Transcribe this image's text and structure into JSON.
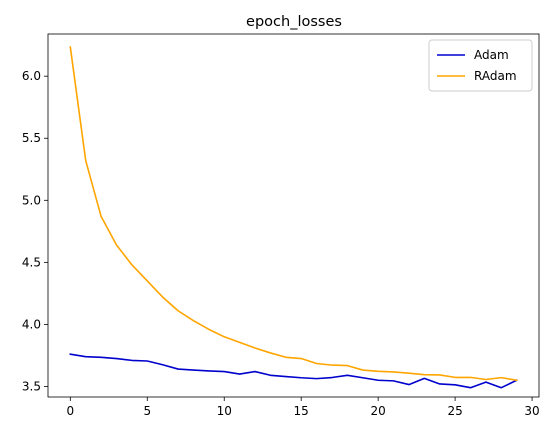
{
  "chart_data": {
    "type": "line",
    "title": "epoch_losses",
    "xlabel": "",
    "ylabel": "",
    "xlim": [
      -1.45,
      30.45
    ],
    "ylim": [
      3.415,
      6.34
    ],
    "xticks": [
      0,
      5,
      10,
      15,
      20,
      25,
      30
    ],
    "xtick_labels": [
      "0",
      "5",
      "10",
      "15",
      "20",
      "25",
      "30"
    ],
    "yticks": [
      3.5,
      4.0,
      4.5,
      5.0,
      5.5,
      6.0
    ],
    "ytick_labels": [
      "3.5",
      "4.0",
      "4.5",
      "5.0",
      "5.5",
      "6.0"
    ],
    "grid": false,
    "legend_position": "top-right",
    "x": [
      0,
      1,
      2,
      3,
      4,
      5,
      6,
      7,
      8,
      9,
      10,
      11,
      12,
      13,
      14,
      15,
      16,
      17,
      18,
      19,
      20,
      21,
      22,
      23,
      24,
      25,
      26,
      27,
      28,
      29
    ],
    "series": [
      {
        "name": "Adam",
        "color": "#0000cd",
        "values": [
          3.76,
          3.74,
          3.735,
          3.725,
          3.71,
          3.705,
          3.675,
          3.64,
          3.632,
          3.625,
          3.62,
          3.6,
          3.62,
          3.59,
          3.58,
          3.57,
          3.563,
          3.572,
          3.59,
          3.57,
          3.55,
          3.545,
          3.515,
          3.565,
          3.52,
          3.513,
          3.49,
          3.535,
          3.49,
          3.55
        ]
      },
      {
        "name": "RAdam",
        "color": "#ffa500",
        "values": [
          6.235,
          5.32,
          4.87,
          4.64,
          4.48,
          4.35,
          4.22,
          4.11,
          4.03,
          3.96,
          3.9,
          3.855,
          3.81,
          3.77,
          3.735,
          3.725,
          3.685,
          3.672,
          3.668,
          3.632,
          3.622,
          3.617,
          3.607,
          3.595,
          3.593,
          3.573,
          3.573,
          3.556,
          3.571,
          3.55
        ]
      }
    ]
  }
}
